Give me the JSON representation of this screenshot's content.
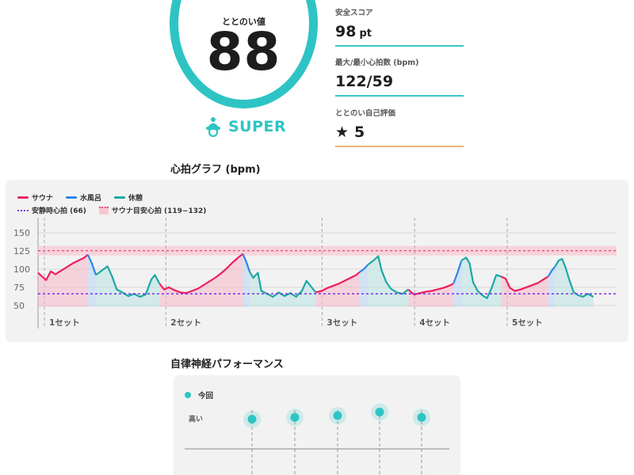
{
  "score": {
    "label": "ととのい値",
    "value": "88"
  },
  "rank": {
    "icon": "sauna-hat-icon",
    "label": "SUPER"
  },
  "stats": [
    {
      "label": "安全スコア",
      "value": "98",
      "unit": "pt"
    },
    {
      "label": "最大/最小心拍数 (bpm)",
      "value": "122/59",
      "unit": ""
    },
    {
      "label": "ととのい自己評価",
      "value": "5",
      "unit": "",
      "icon": "star-icon"
    }
  ],
  "heart_section": {
    "title": "心拍グラフ (bpm)"
  },
  "legend": {
    "sauna": "サウナ",
    "cold": "水風呂",
    "rest": "休憩",
    "resting": "安静時心拍 (66)",
    "target": "サウナ目安心拍 (119~132)"
  },
  "colors": {
    "sauna": "#ee1f5f",
    "cold": "#2f86e8",
    "rest": "#1ea7a4",
    "resting": "#7b2cf0",
    "target": "#e8487a",
    "accent": "#2ec4c4"
  },
  "chart_data": {
    "type": "line",
    "ylim": [
      40,
      160
    ],
    "yticks": [
      150,
      125,
      100,
      75,
      50
    ],
    "resting_hr": 66,
    "target_band": [
      119,
      132
    ],
    "set_labels": [
      "1セット",
      "2セット",
      "3セット",
      "4セット",
      "5セット"
    ],
    "series": [
      {
        "name": "サウナ",
        "segments": [
          [
            [
              0.0,
              95
            ],
            [
              0.7,
              90
            ],
            [
              1.4,
              85
            ],
            [
              2.2,
              97
            ],
            [
              3.0,
              93
            ],
            [
              4.0,
              98
            ],
            [
              5.0,
              103
            ],
            [
              6.0,
              108
            ],
            [
              7.0,
              112
            ],
            [
              8.0,
              116
            ],
            [
              8.6,
              120
            ]
          ],
          [
            [
              21.0,
              80
            ],
            [
              21.8,
              72
            ],
            [
              22.6,
              75
            ],
            [
              23.6,
              71
            ],
            [
              24.6,
              68
            ],
            [
              25.6,
              67
            ],
            [
              26.6,
              70
            ],
            [
              27.6,
              73
            ],
            [
              28.6,
              78
            ],
            [
              29.6,
              83
            ],
            [
              30.6,
              88
            ],
            [
              31.6,
              94
            ],
            [
              32.6,
              101
            ],
            [
              33.6,
              109
            ],
            [
              34.6,
              116
            ],
            [
              35.4,
              121
            ]
          ],
          [
            [
              48.0,
              68
            ],
            [
              49.0,
              70
            ],
            [
              50.0,
              74
            ],
            [
              51.0,
              77
            ],
            [
              52.0,
              80
            ],
            [
              53.0,
              84
            ],
            [
              54.0,
              88
            ],
            [
              55.0,
              92
            ],
            [
              55.6,
              96
            ]
          ],
          [
            [
              64.0,
              72
            ],
            [
              65.0,
              65
            ],
            [
              66.0,
              67
            ],
            [
              67.0,
              69
            ],
            [
              68.0,
              70
            ],
            [
              69.0,
              72
            ],
            [
              70.0,
              74
            ],
            [
              71.0,
              77
            ],
            [
              71.8,
              80
            ]
          ],
          [
            [
              80.0,
              90
            ],
            [
              80.8,
              87
            ],
            [
              81.6,
              74
            ],
            [
              82.4,
              70
            ],
            [
              83.4,
              72
            ],
            [
              84.4,
              75
            ],
            [
              85.4,
              78
            ],
            [
              86.4,
              81
            ],
            [
              87.4,
              86
            ],
            [
              88.2,
              90
            ]
          ]
        ]
      },
      {
        "name": "水風呂",
        "segments": [
          [
            [
              8.6,
              120
            ],
            [
              9.3,
              108
            ],
            [
              10.0,
              92
            ]
          ],
          [
            [
              35.4,
              121
            ],
            [
              36.0,
              110
            ],
            [
              36.6,
              96
            ]
          ],
          [
            [
              55.6,
              96
            ],
            [
              56.3,
              100
            ],
            [
              57.0,
              106
            ]
          ],
          [
            [
              71.8,
              80
            ],
            [
              72.5,
              95
            ],
            [
              73.2,
              112
            ]
          ],
          [
            [
              88.2,
              90
            ],
            [
              88.8,
              98
            ],
            [
              89.4,
              104
            ]
          ]
        ]
      },
      {
        "name": "休憩",
        "segments": [
          [
            [
              10.0,
              92
            ],
            [
              11.0,
              98
            ],
            [
              12.0,
              104
            ],
            [
              12.8,
              90
            ],
            [
              13.6,
              72
            ],
            [
              14.6,
              68
            ],
            [
              15.6,
              63
            ],
            [
              16.6,
              66
            ],
            [
              17.6,
              62
            ],
            [
              18.6,
              65
            ],
            [
              19.6,
              86
            ],
            [
              20.2,
              92
            ],
            [
              21.0,
              80
            ]
          ],
          [
            [
              36.6,
              96
            ],
            [
              37.2,
              88
            ],
            [
              38.0,
              95
            ],
            [
              38.6,
              70
            ],
            [
              39.6,
              66
            ],
            [
              40.6,
              62
            ],
            [
              41.6,
              68
            ],
            [
              42.6,
              63
            ],
            [
              43.6,
              67
            ],
            [
              44.6,
              62
            ],
            [
              45.6,
              70
            ],
            [
              46.4,
              84
            ],
            [
              47.2,
              76
            ],
            [
              48.0,
              68
            ]
          ],
          [
            [
              57.0,
              106
            ],
            [
              58.0,
              112
            ],
            [
              58.8,
              118
            ],
            [
              59.4,
              98
            ],
            [
              60.2,
              82
            ],
            [
              61.0,
              73
            ],
            [
              62.0,
              68
            ],
            [
              63.0,
              66
            ],
            [
              64.0,
              72
            ]
          ],
          [
            [
              73.2,
              112
            ],
            [
              74.0,
              116
            ],
            [
              74.6,
              108
            ],
            [
              75.2,
              82
            ],
            [
              76.0,
              70
            ],
            [
              76.8,
              64
            ],
            [
              77.6,
              60
            ],
            [
              78.4,
              74
            ],
            [
              79.2,
              92
            ],
            [
              80.0,
              90
            ]
          ],
          [
            [
              89.4,
              104
            ],
            [
              90.0,
              112
            ],
            [
              90.6,
              114
            ],
            [
              91.2,
              102
            ],
            [
              91.8,
              86
            ],
            [
              92.6,
              68
            ],
            [
              93.4,
              64
            ],
            [
              94.2,
              62
            ],
            [
              95.0,
              66
            ],
            [
              96.0,
              62
            ]
          ]
        ]
      }
    ]
  },
  "ans_section": {
    "title": "自律神経パフォーマンス"
  },
  "ans_chart": {
    "legend": "今回",
    "ylabel": "高い",
    "points": [
      0.7,
      0.75,
      0.8,
      0.9,
      0.75
    ]
  }
}
